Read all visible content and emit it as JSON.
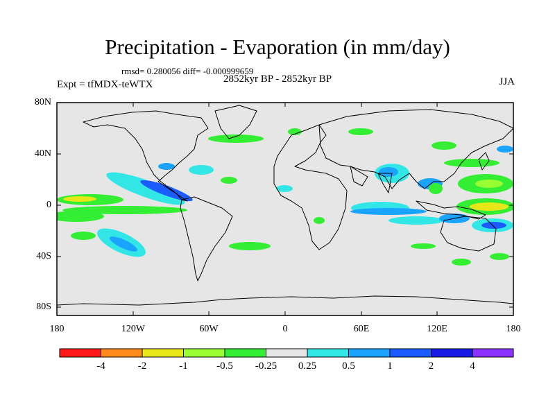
{
  "title": "Precipitation - Evaporation (in mm/day)",
  "stats": "rmsd= 0.280056 diff= -0.000999659",
  "period": "2852kyr BP - 2852kyr BP",
  "experiment": "Expt = tfMDX-teWTX",
  "season": "JJA",
  "y_axis_labels": [
    "80N",
    "40N",
    "0",
    "40S",
    "80S"
  ],
  "x_axis_labels": [
    "180",
    "120W",
    "60W",
    "0",
    "60E",
    "120E",
    "180"
  ],
  "colorbar": {
    "labels": [
      "-4",
      "-2",
      "-1",
      "-0.5",
      "-0.25",
      "0.25",
      "0.5",
      "1",
      "2",
      "4"
    ],
    "colors": [
      "#ff1a1a",
      "#ff8c1a",
      "#e6e619",
      "#99ff33",
      "#33ee33",
      "#e6e6e6",
      "#33e6e6",
      "#1aa3ff",
      "#1a5cff",
      "#1a1ae6",
      "#8c33ff"
    ]
  },
  "colors": {
    "background_field": "#e6e6e6",
    "coastline": "#000000"
  }
}
